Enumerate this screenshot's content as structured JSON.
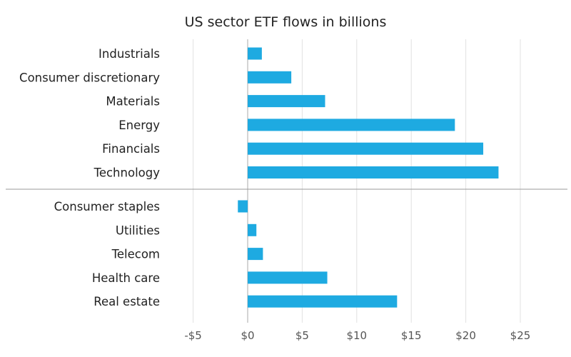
{
  "chart_data": {
    "type": "bar",
    "orientation": "horizontal",
    "title": "US sector ETF flows in billions",
    "xlabel": "",
    "ylabel": "",
    "xlim": [
      -5,
      25
    ],
    "grid": true,
    "x_ticks": [
      -5,
      0,
      5,
      10,
      15,
      20,
      25
    ],
    "tick_labels": [
      "-$5",
      "$0",
      "$5",
      "$10",
      "$15",
      "$20",
      "$25"
    ],
    "groups": [
      {
        "categories": [
          "Industrials",
          "Consumer discretionary",
          "Materials",
          "Energy",
          "Financials",
          "Technology"
        ],
        "values": [
          1.3,
          4.0,
          7.1,
          19.0,
          21.6,
          23.0
        ]
      },
      {
        "categories": [
          "Consumer staples",
          "Utilities",
          "Telecom",
          "Health care",
          "Real estate"
        ],
        "values": [
          -0.9,
          0.8,
          1.4,
          7.3,
          13.7
        ]
      }
    ],
    "bar_color": "#1eaae1"
  }
}
